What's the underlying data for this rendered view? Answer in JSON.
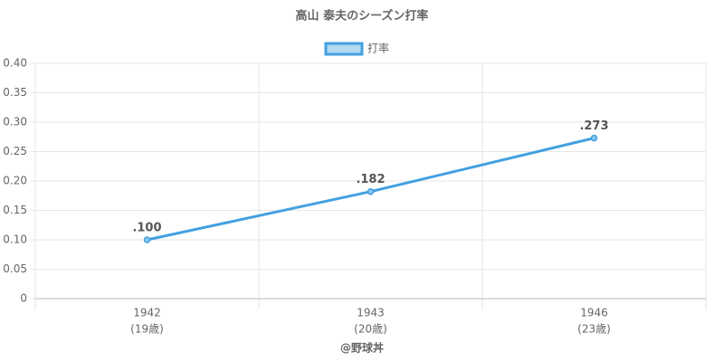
{
  "chart_data": {
    "type": "line",
    "title": "高山 泰夫のシーズン打率",
    "categories": [
      [
        "1942",
        "(19歳)"
      ],
      [
        "1943",
        "(20歳)"
      ],
      [
        "1946",
        "(23歳)"
      ]
    ],
    "series": [
      {
        "name": "打率",
        "color": "#42a0e0",
        "values": [
          0.1,
          0.182,
          0.273
        ],
        "value_labels": [
          ".100",
          ".182",
          ".273"
        ]
      }
    ],
    "ylim": [
      0,
      0.4
    ],
    "yticks": [
      0,
      0.05,
      {
        "value": 0.1,
        "label": "0.10"
      },
      0.15,
      {
        "value": 0.2,
        "label": "0.20"
      },
      0.25,
      {
        "value": 0.3,
        "label": "0.30"
      },
      0.35,
      {
        "value": 0.4,
        "label": "0.40"
      }
    ],
    "grid": true,
    "legend": "top",
    "credit": "@野球丼"
  }
}
